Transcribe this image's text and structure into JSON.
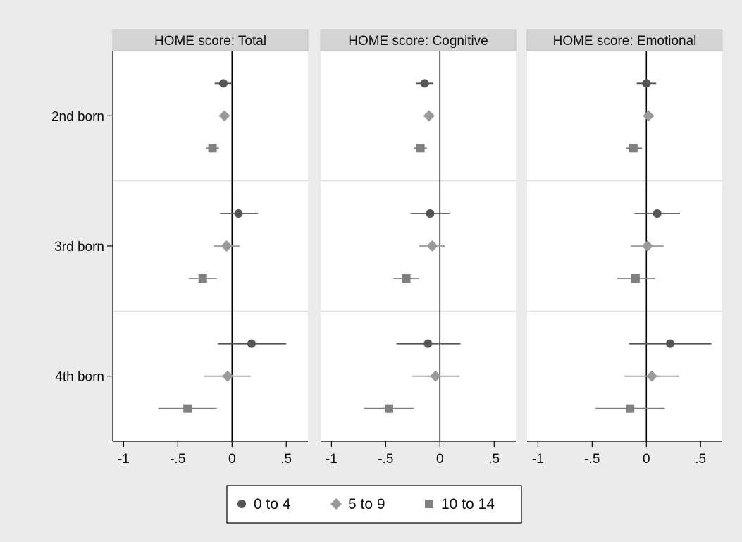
{
  "chart_data": {
    "type": "scatter",
    "subtype": "coefficient-plot",
    "panels": [
      {
        "title": "HOME score: Total",
        "estimates": [
          {
            "category": "2nd born",
            "group": "0 to 4",
            "value": -0.08,
            "ci": [
              -0.16,
              0.0
            ]
          },
          {
            "category": "2nd born",
            "group": "5 to 9",
            "value": -0.07,
            "ci": [
              -0.07,
              -0.07
            ]
          },
          {
            "category": "2nd born",
            "group": "10 to 14",
            "value": -0.18,
            "ci": [
              -0.24,
              -0.12
            ]
          },
          {
            "category": "3rd born",
            "group": "0 to 4",
            "value": 0.06,
            "ci": [
              -0.11,
              0.24
            ]
          },
          {
            "category": "3rd born",
            "group": "5 to 9",
            "value": -0.05,
            "ci": [
              -0.17,
              0.07
            ]
          },
          {
            "category": "3rd born",
            "group": "10 to 14",
            "value": -0.27,
            "ci": [
              -0.4,
              -0.14
            ]
          },
          {
            "category": "4th born",
            "group": "0 to 4",
            "value": 0.18,
            "ci": [
              -0.13,
              0.5
            ]
          },
          {
            "category": "4th born",
            "group": "5 to 9",
            "value": -0.04,
            "ci": [
              -0.26,
              0.17
            ]
          },
          {
            "category": "4th born",
            "group": "10 to 14",
            "value": -0.41,
            "ci": [
              -0.68,
              -0.14
            ]
          }
        ]
      },
      {
        "title": "HOME score: Cognitive",
        "estimates": [
          {
            "category": "2nd born",
            "group": "0 to 4",
            "value": -0.14,
            "ci": [
              -0.22,
              -0.06
            ]
          },
          {
            "category": "2nd born",
            "group": "5 to 9",
            "value": -0.1,
            "ci": [
              -0.14,
              -0.06
            ]
          },
          {
            "category": "2nd born",
            "group": "10 to 14",
            "value": -0.18,
            "ci": [
              -0.24,
              -0.12
            ]
          },
          {
            "category": "3rd born",
            "group": "0 to 4",
            "value": -0.09,
            "ci": [
              -0.27,
              0.09
            ]
          },
          {
            "category": "3rd born",
            "group": "5 to 9",
            "value": -0.07,
            "ci": [
              -0.19,
              0.05
            ]
          },
          {
            "category": "3rd born",
            "group": "10 to 14",
            "value": -0.31,
            "ci": [
              -0.43,
              -0.19
            ]
          },
          {
            "category": "4th born",
            "group": "0 to 4",
            "value": -0.11,
            "ci": [
              -0.4,
              0.19
            ]
          },
          {
            "category": "4th born",
            "group": "5 to 9",
            "value": -0.04,
            "ci": [
              -0.26,
              0.18
            ]
          },
          {
            "category": "4th born",
            "group": "10 to 14",
            "value": -0.47,
            "ci": [
              -0.7,
              -0.24
            ]
          }
        ]
      },
      {
        "title": "HOME score: Emotional",
        "estimates": [
          {
            "category": "2nd born",
            "group": "0 to 4",
            "value": 0.0,
            "ci": [
              -0.09,
              0.09
            ]
          },
          {
            "category": "2nd born",
            "group": "5 to 9",
            "value": 0.02,
            "ci": [
              -0.03,
              0.07
            ]
          },
          {
            "category": "2nd born",
            "group": "10 to 14",
            "value": -0.12,
            "ci": [
              -0.19,
              -0.04
            ]
          },
          {
            "category": "3rd born",
            "group": "0 to 4",
            "value": 0.1,
            "ci": [
              -0.11,
              0.31
            ]
          },
          {
            "category": "3rd born",
            "group": "5 to 9",
            "value": 0.01,
            "ci": [
              -0.14,
              0.16
            ]
          },
          {
            "category": "3rd born",
            "group": "10 to 14",
            "value": -0.1,
            "ci": [
              -0.27,
              0.08
            ]
          },
          {
            "category": "4th born",
            "group": "0 to 4",
            "value": 0.22,
            "ci": [
              -0.16,
              0.6
            ]
          },
          {
            "category": "4th born",
            "group": "5 to 9",
            "value": 0.05,
            "ci": [
              -0.2,
              0.3
            ]
          },
          {
            "category": "4th born",
            "group": "10 to 14",
            "value": -0.15,
            "ci": [
              -0.47,
              0.17
            ]
          }
        ]
      }
    ],
    "categories": [
      "2nd born",
      "3rd born",
      "4th born"
    ],
    "series": [
      {
        "name": "0 to 4",
        "marker": "circle",
        "color": "#555555"
      },
      {
        "name": "5 to 9",
        "marker": "diamond",
        "color": "#9a9a9a"
      },
      {
        "name": "10 to 14",
        "marker": "square",
        "color": "#808080"
      }
    ],
    "xlim": [
      -1.1,
      0.7
    ],
    "xticks": [
      -1,
      -0.5,
      0,
      0.5
    ],
    "xtick_labels": [
      "-1",
      "-.5",
      "0",
      ".5"
    ],
    "reference_line": 0,
    "grid": "horizontal separators between categories",
    "legend_position": "bottom-center",
    "colors": {
      "background": "#ebebeb",
      "plot": "#ffffff",
      "strip": "#d4d4d4",
      "axis": "#000000",
      "separator": "#e2e2e2"
    }
  }
}
